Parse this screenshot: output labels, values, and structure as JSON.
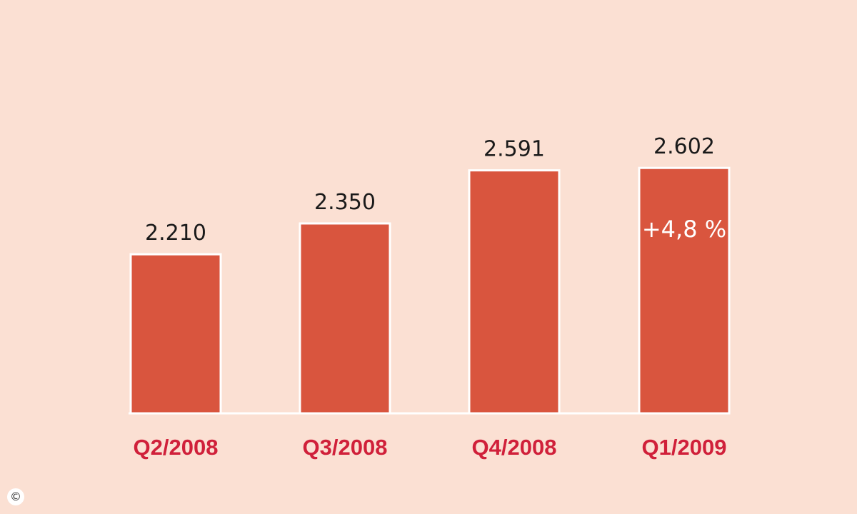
{
  "chart_data": {
    "type": "bar",
    "categories": [
      "Q2/2008",
      "Q3/2008",
      "Q4/2008",
      "Q1/2009"
    ],
    "values": [
      2210,
      2350,
      2591,
      2602
    ],
    "value_labels": [
      "2.210",
      "2.350",
      "2.591",
      "2.602"
    ],
    "annotations": [
      {
        "category": "Q1/2009",
        "text": "+4,8 %"
      }
    ],
    "title": "",
    "xlabel": "",
    "ylabel": "",
    "grid": false,
    "legend": "none",
    "colors": {
      "background": "#fbe0d3",
      "bar": "#d9553e",
      "bar_outline": "#ffffff",
      "baseline": "#ffffff",
      "category_label": "#d0203a",
      "value_label": "#1a1a1a",
      "annotation": "#ffffff"
    }
  },
  "footer": {
    "copyright_symbol": "©"
  }
}
